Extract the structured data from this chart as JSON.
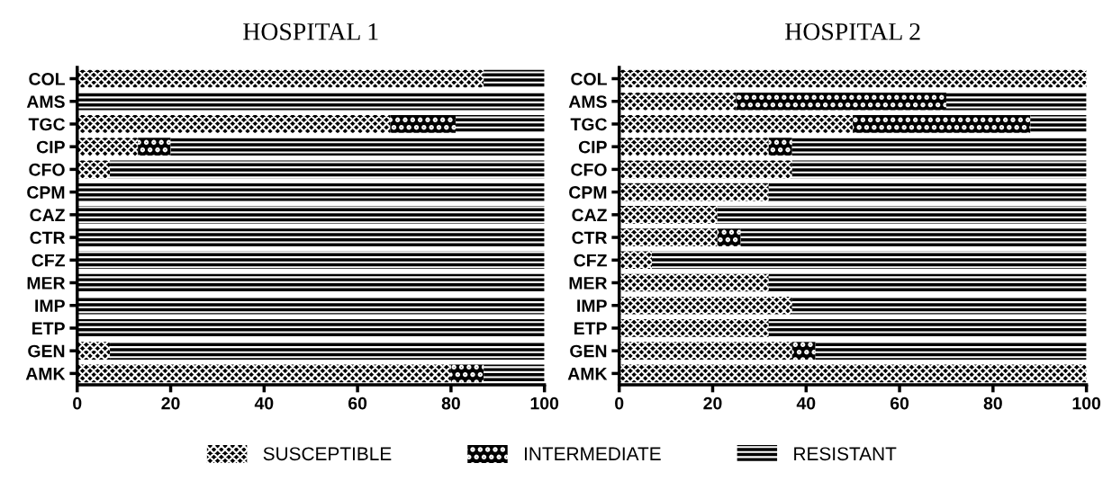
{
  "chart_data": [
    {
      "type": "bar",
      "title": "HOSPITAL 1",
      "orientation": "horizontal",
      "stacked": true,
      "categories": [
        "COL",
        "AMS",
        "TGC",
        "CIP",
        "CFO",
        "CPM",
        "CAZ",
        "CTR",
        "CFZ",
        "MER",
        "IMP",
        "ETP",
        "GEN",
        "AMK"
      ],
      "series": [
        {
          "name": "SUSCEPTIBLE",
          "color": "#000000",
          "values": [
            87,
            0,
            67,
            13,
            7,
            0,
            0,
            0,
            0,
            0,
            0,
            0,
            7,
            80
          ]
        },
        {
          "name": "INTERMEDIATE",
          "color": "#000000",
          "values": [
            0,
            0,
            14,
            7,
            0,
            0,
            0,
            0,
            0,
            0,
            0,
            0,
            0,
            7
          ]
        },
        {
          "name": "RESISTANT",
          "color": "#000000",
          "values": [
            13,
            100,
            19,
            80,
            93,
            100,
            100,
            100,
            100,
            100,
            100,
            100,
            93,
            13
          ]
        }
      ],
      "xlim": [
        0,
        100
      ],
      "xticks": [
        0,
        20,
        40,
        60,
        80,
        100
      ],
      "legend": "bottom"
    },
    {
      "type": "bar",
      "title": "HOSPITAL 2",
      "orientation": "horizontal",
      "stacked": true,
      "categories": [
        "COL",
        "AMS",
        "TGC",
        "CIP",
        "CFO",
        "CPM",
        "CAZ",
        "CTR",
        "CFZ",
        "MER",
        "IMP",
        "ETP",
        "GEN",
        "AMK"
      ],
      "series": [
        {
          "color": "#000000",
          "values": [
            100,
            25,
            50,
            32,
            37,
            32,
            21,
            21,
            7,
            32,
            37,
            32,
            37,
            100
          ]
        },
        {
          "color": "#000000",
          "values": [
            0,
            45,
            38,
            5,
            0,
            0,
            0,
            5,
            0,
            0,
            0,
            0,
            5,
            0
          ]
        },
        {
          "color": "#000000",
          "values": [
            0,
            30,
            12,
            63,
            63,
            68,
            79,
            74,
            93,
            68,
            63,
            68,
            58,
            0
          ]
        }
      ],
      "xlim": [
        0,
        100
      ],
      "xticks": [
        0,
        20,
        40,
        60,
        80,
        100
      ]
    }
  ]
}
